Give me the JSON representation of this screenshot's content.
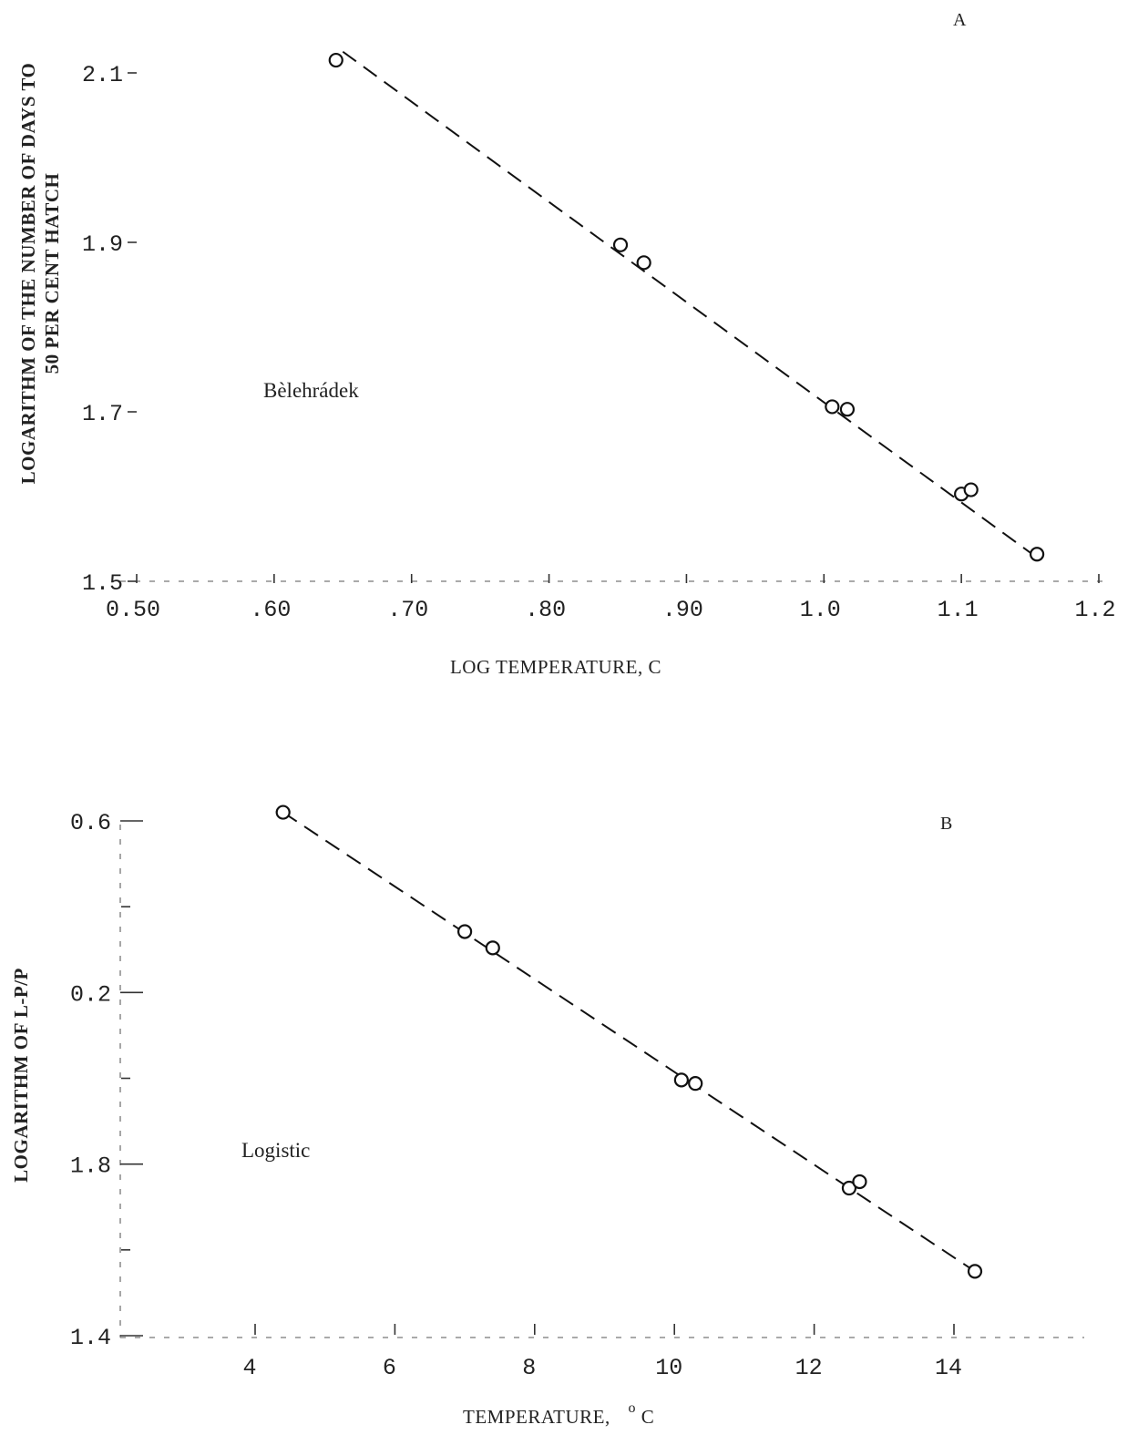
{
  "chart_data": [
    {
      "panel": "A",
      "type": "scatter",
      "xlabel": "LOG TEMPERATURE,  C",
      "ylabel_line1": "LOGARITHM OF THE NUMBER OF DAYS TO",
      "ylabel_line2": "50 PER CENT HATCH",
      "annotation": "Bèlehrádek",
      "xlim": [
        0.5,
        1.2
      ],
      "ylim": [
        1.5,
        2.15
      ],
      "x_ticks": [
        0.5,
        0.6,
        0.7,
        0.8,
        0.9,
        1.0,
        1.1,
        1.2
      ],
      "x_tick_labels": [
        "0.50",
        ".60",
        ".70",
        ".80",
        ".90",
        "1.0",
        "1.1",
        "1.2"
      ],
      "y_ticks": [
        1.5,
        1.7,
        1.9,
        2.1
      ],
      "y_tick_labels": [
        "1.5",
        "1.7",
        "1.9",
        "2.1"
      ],
      "points": [
        {
          "x": 0.645,
          "y": 2.115
        },
        {
          "x": 0.852,
          "y": 1.897
        },
        {
          "x": 0.869,
          "y": 1.876
        },
        {
          "x": 1.006,
          "y": 1.706
        },
        {
          "x": 1.017,
          "y": 1.703
        },
        {
          "x": 1.1,
          "y": 1.603
        },
        {
          "x": 1.107,
          "y": 1.608
        },
        {
          "x": 1.155,
          "y": 1.532
        }
      ],
      "fit_line": {
        "x": [
          0.65,
          1.155
        ],
        "y": [
          2.125,
          1.528
        ]
      }
    },
    {
      "panel": "B",
      "type": "scatter",
      "xlabel": "TEMPERATURE,",
      "xlabel_unit_sup": "o",
      "xlabel_unit": "C",
      "ylabel": "LOGARITHM OF L-P/P",
      "annotation": "Logistic",
      "xlim": [
        2.5,
        15.5
      ],
      "ylim": [
        1.4,
        0.6
      ],
      "x_ticks": [
        4,
        6,
        8,
        10,
        12,
        14
      ],
      "x_tick_labels": [
        "4",
        "6",
        "8",
        "10",
        "12",
        "14"
      ],
      "y_ticks": [
        0.6,
        0.2,
        1.8,
        1.4
      ],
      "y_tick_labels": [
        "0.6",
        "0.2",
        "1.8",
        "1.4"
      ],
      "points": [
        {
          "x": 4.4,
          "y": 0.62
        },
        {
          "x": 7.0,
          "y": 0.342
        },
        {
          "x": 7.4,
          "y": 0.304
        },
        {
          "x": 10.1,
          "y": 1.996
        },
        {
          "x": 10.3,
          "y": 1.988
        },
        {
          "x": 12.5,
          "y": 1.744
        },
        {
          "x": 12.65,
          "y": 1.759
        },
        {
          "x": 14.3,
          "y": 1.55
        }
      ],
      "fit_line": {
        "x": [
          4.4,
          14.3
        ],
        "y": [
          0.62,
          1.55
        ]
      }
    }
  ],
  "panel_labels": {
    "a": "A",
    "b": "B"
  }
}
